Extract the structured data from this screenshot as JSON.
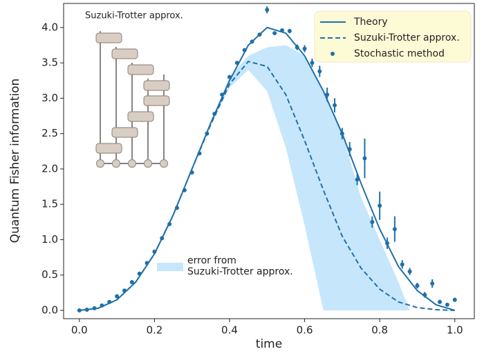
{
  "chart_data": {
    "type": "line",
    "xlabel": "time",
    "ylabel": "Quantum Fisher information",
    "xlim": [
      -0.042,
      1.052
    ],
    "ylim": [
      -0.117,
      4.34
    ],
    "xticks": [
      {
        "value": 0,
        "label": "0.0"
      },
      0.2,
      0.4,
      0.6,
      0.8,
      {
        "value": 1,
        "label": "1.0"
      }
    ],
    "yticks": [
      {
        "value": 0,
        "label": "0.0"
      },
      0.5,
      {
        "value": 1,
        "label": "1.0"
      },
      1.5,
      {
        "value": 2,
        "label": "2.0"
      },
      2.5,
      {
        "value": 3,
        "label": "3.0"
      },
      3.5,
      {
        "value": 4,
        "label": "4.0"
      }
    ],
    "legend_loc": "upper right",
    "inset_label": "Suzuki-Trotter approx.",
    "series": [
      {
        "name": "Theory",
        "kind": "line",
        "style": "solid",
        "color": "#1f6fa8",
        "x": [
          0,
          0.05,
          0.1,
          0.15,
          0.2,
          0.25,
          0.3,
          0.35,
          0.4,
          0.45,
          0.5,
          0.55,
          0.6,
          0.65,
          0.7,
          0.75,
          0.8,
          0.85,
          0.9,
          0.95,
          1.0
        ],
        "y": [
          0,
          0.03,
          0.15,
          0.4,
          0.8,
          1.35,
          2.0,
          2.65,
          3.25,
          3.75,
          4.0,
          3.92,
          3.6,
          3.1,
          2.5,
          1.8,
          1.15,
          0.62,
          0.28,
          0.08,
          0
        ]
      },
      {
        "name": "Suzuki-Trotter approx.",
        "kind": "line",
        "style": "dashed",
        "color": "#1f6fa8",
        "x": [
          0,
          0.05,
          0.1,
          0.15,
          0.2,
          0.25,
          0.3,
          0.35,
          0.4,
          0.45,
          0.5,
          0.55,
          0.6,
          0.65,
          0.7,
          0.75,
          0.8,
          0.85,
          0.9,
          0.95,
          1.0
        ],
        "y": [
          0,
          0.03,
          0.15,
          0.4,
          0.8,
          1.35,
          2.0,
          2.63,
          3.2,
          3.52,
          3.45,
          3.05,
          2.4,
          1.7,
          1.05,
          0.6,
          0.3,
          0.12,
          0.04,
          0.01,
          0
        ]
      },
      {
        "name": "Stochastic method",
        "kind": "errorbar",
        "color": "#1f6fa8",
        "x": [
          0,
          0.02,
          0.04,
          0.06,
          0.08,
          0.1,
          0.12,
          0.14,
          0.16,
          0.18,
          0.2,
          0.22,
          0.24,
          0.26,
          0.28,
          0.3,
          0.32,
          0.34,
          0.36,
          0.38,
          0.4,
          0.42,
          0.44,
          0.46,
          0.48,
          0.5,
          0.52,
          0.54,
          0.56,
          0.58,
          0.6,
          0.62,
          0.64,
          0.66,
          0.68,
          0.7,
          0.72,
          0.74,
          0.76,
          0.78,
          0.8,
          0.82,
          0.84,
          0.86,
          0.88,
          0.9,
          0.92,
          0.94,
          0.96,
          0.98,
          1.0
        ],
        "y": [
          0,
          0.01,
          0.03,
          0.07,
          0.12,
          0.2,
          0.28,
          0.4,
          0.52,
          0.67,
          0.83,
          1.02,
          1.22,
          1.45,
          1.7,
          1.95,
          2.22,
          2.5,
          2.78,
          3.05,
          3.3,
          3.5,
          3.68,
          3.8,
          3.9,
          4.25,
          3.92,
          3.96,
          3.95,
          3.72,
          3.7,
          3.5,
          3.38,
          3.05,
          2.9,
          2.5,
          2.28,
          1.85,
          2.15,
          1.25,
          1.48,
          0.95,
          1.15,
          0.65,
          0.55,
          0.35,
          0.22,
          0.38,
          0.12,
          0.08,
          0.15
        ],
        "errors": [
          0.01,
          0.01,
          0.01,
          0.01,
          0.01,
          0.01,
          0.01,
          0.01,
          0.01,
          0.01,
          0.01,
          0.01,
          0.01,
          0.01,
          0.01,
          0.01,
          0.01,
          0.01,
          0.01,
          0.02,
          0.02,
          0.02,
          0.02,
          0.02,
          0.02,
          0.05,
          0.02,
          0.02,
          0.03,
          0.04,
          0.05,
          0.06,
          0.08,
          0.1,
          0.1,
          0.08,
          0.1,
          0.08,
          0.28,
          0.08,
          0.2,
          0.08,
          0.18,
          0.06,
          0.05,
          0.04,
          0.04,
          0.06,
          0.03,
          0.02,
          0.03
        ]
      },
      {
        "name": "error from\nSuzuki-Trotter approx.",
        "kind": "band",
        "color": "#c6e6fb",
        "x": [
          0,
          0.1,
          0.2,
          0.3,
          0.35,
          0.4,
          0.45,
          0.5,
          0.55,
          0.6,
          0.65,
          0.7,
          0.75,
          0.8,
          0.85,
          0.88
        ],
        "lower": [
          0,
          0.15,
          0.8,
          2.0,
          2.62,
          3.15,
          3.4,
          3.1,
          2.3,
          1.2,
          0,
          0,
          0,
          0,
          0,
          0
        ],
        "upper": [
          0,
          0.15,
          0.8,
          2.0,
          2.66,
          3.3,
          3.6,
          3.72,
          3.75,
          3.6,
          3.1,
          2.5,
          1.6,
          1.0,
          0.4,
          0
        ]
      }
    ]
  }
}
